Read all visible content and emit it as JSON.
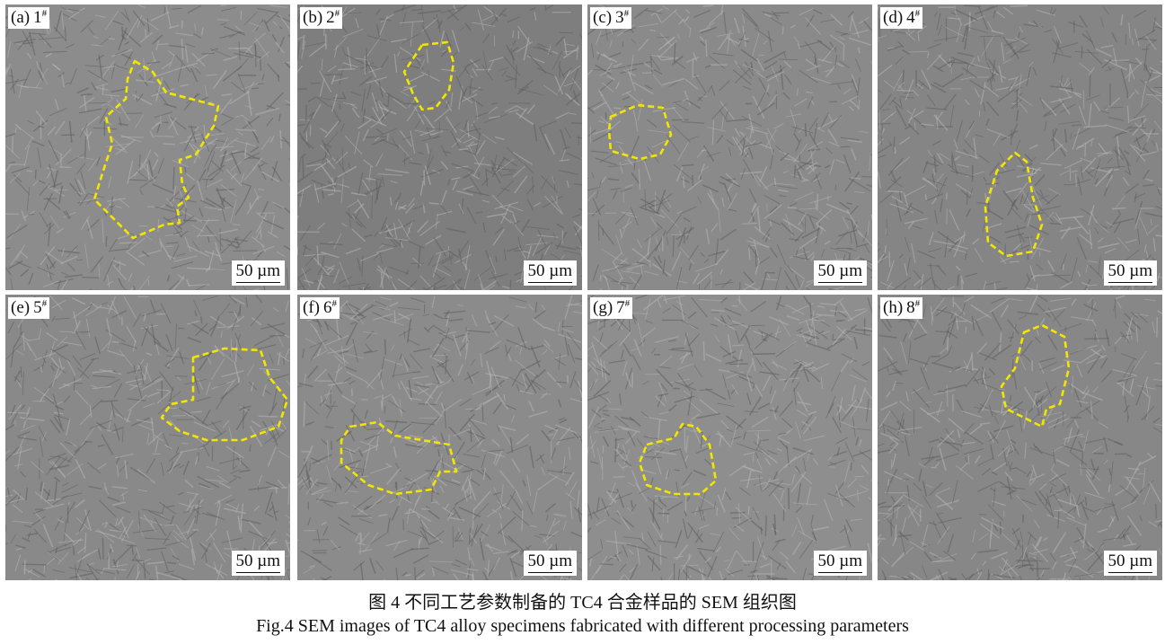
{
  "figure": {
    "panels": [
      {
        "letter": "(a)",
        "sample": "1",
        "mark": "#",
        "scale": "50 µm"
      },
      {
        "letter": "(b)",
        "sample": "2",
        "mark": "#",
        "scale": "50 µm"
      },
      {
        "letter": "(c)",
        "sample": "3",
        "mark": "#",
        "scale": "50 µm"
      },
      {
        "letter": "(d)",
        "sample": "4",
        "mark": "#",
        "scale": "50 µm"
      },
      {
        "letter": "(e)",
        "sample": "5",
        "mark": "#",
        "scale": "50 µm"
      },
      {
        "letter": "(f)",
        "sample": "6",
        "mark": "#",
        "scale": "50 µm"
      },
      {
        "letter": "(g)",
        "sample": "7",
        "mark": "#",
        "scale": "50 µm"
      },
      {
        "letter": "(h)",
        "sample": "8",
        "mark": "#",
        "scale": "50 µm"
      }
    ],
    "outline_color": "#f2e600",
    "caption_cn": "图 4  不同工艺参数制备的 TC4 合金样品的 SEM 组织图",
    "caption_en": "Fig.4  SEM images of TC4 alloy specimens fabricated with different processing parameters"
  }
}
